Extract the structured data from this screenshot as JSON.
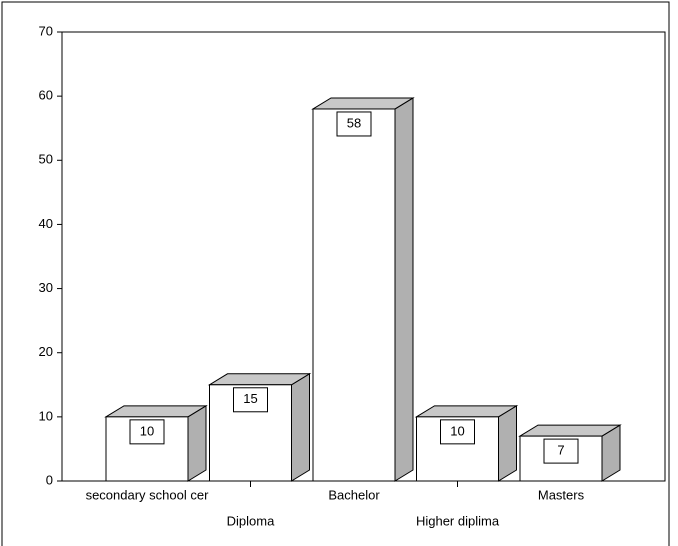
{
  "chart_data": {
    "type": "bar3d",
    "categories": [
      "secondary school cer",
      "Diploma",
      "Bachelor",
      "Higher diplima",
      "Masters"
    ],
    "values": [
      10,
      15,
      58,
      10,
      7
    ],
    "color": "#ffffff",
    "ylim": [
      0,
      70
    ],
    "yticks": [
      0,
      10,
      20,
      30,
      40,
      50,
      60,
      70
    ]
  }
}
